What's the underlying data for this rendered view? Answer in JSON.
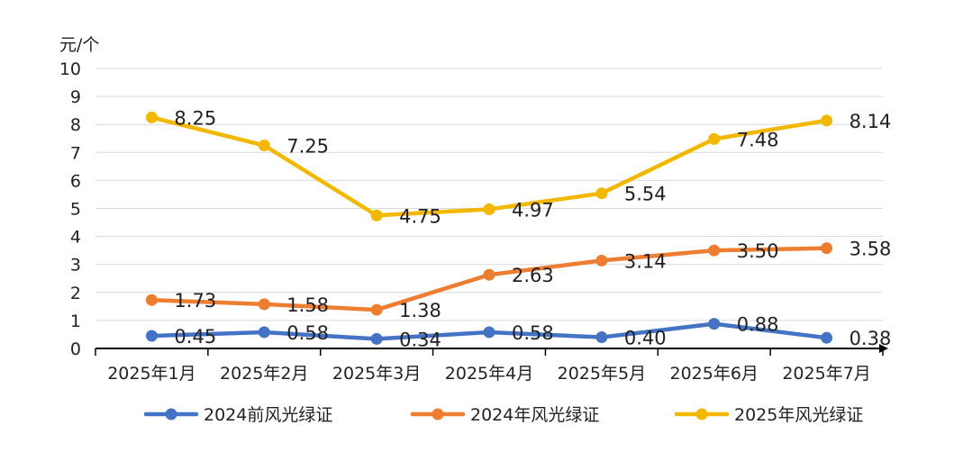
{
  "chart_data": {
    "type": "line",
    "title": "",
    "xlabel": "",
    "ylabel": "元/个",
    "ylim": [
      0,
      10
    ],
    "yticks": [
      "0",
      "1",
      "2",
      "3",
      "4",
      "5",
      "6",
      "7",
      "8",
      "9",
      "10"
    ],
    "grid": "horizontal",
    "legend_position": "bottom",
    "categories": [
      "2025年1月",
      "2025年2月",
      "2025年3月",
      "2025年4月",
      "2025年5月",
      "2025年6月",
      "2025年7月"
    ],
    "series": [
      {
        "name": "2024前风光绿证",
        "color": "#4472C4",
        "values": [
          0.45,
          0.58,
          0.34,
          0.58,
          0.4,
          0.88,
          0.38
        ],
        "labels": [
          "0.45",
          "0.58",
          "0.34",
          "0.58",
          "0.40",
          "0.88",
          "0.38"
        ]
      },
      {
        "name": "2024年风光绿证",
        "color": "#ED7D31",
        "values": [
          1.73,
          1.58,
          1.38,
          2.63,
          3.14,
          3.5,
          3.58
        ],
        "labels": [
          "1.73",
          "1.58",
          "1.38",
          "2.63",
          "3.14",
          "3.50",
          "3.58"
        ]
      },
      {
        "name": "2025年风光绿证",
        "color": "#F2B800",
        "values": [
          8.25,
          7.25,
          4.75,
          4.97,
          5.54,
          7.48,
          8.14
        ],
        "labels": [
          "8.25",
          "7.25",
          "4.75",
          "4.97",
          "5.54",
          "7.48",
          "8.14"
        ]
      }
    ]
  }
}
